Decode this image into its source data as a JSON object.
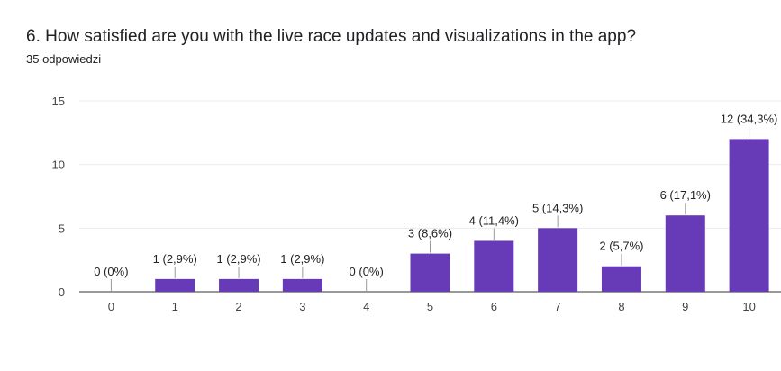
{
  "header": {
    "question": "6. How satisfied are you with the live race updates and visualizations in the app?",
    "responses": "35 odpowiedzi"
  },
  "colors": {
    "bar": "#673ab7",
    "grid": "#ebebeb",
    "axis": "#333333",
    "leader": "#999999"
  },
  "chart_data": {
    "type": "bar",
    "title": "",
    "xlabel": "",
    "ylabel": "",
    "categories": [
      "0",
      "1",
      "2",
      "3",
      "4",
      "5",
      "6",
      "7",
      "8",
      "9",
      "10"
    ],
    "values": [
      0,
      1,
      1,
      1,
      0,
      3,
      4,
      5,
      2,
      6,
      12
    ],
    "data_labels": [
      "0 (0%)",
      "1 (2,9%)",
      "1 (2,9%)",
      "1 (2,9%)",
      "0 (0%)",
      "3 (8,6%)",
      "4 (11,4%)",
      "5 (14,3%)",
      "2 (5,7%)",
      "6 (17,1%)",
      "12 (34,3%)"
    ],
    "ylim": [
      0,
      15
    ],
    "yticks": [
      0,
      5,
      10,
      15
    ],
    "grid": true,
    "legend": "none"
  }
}
